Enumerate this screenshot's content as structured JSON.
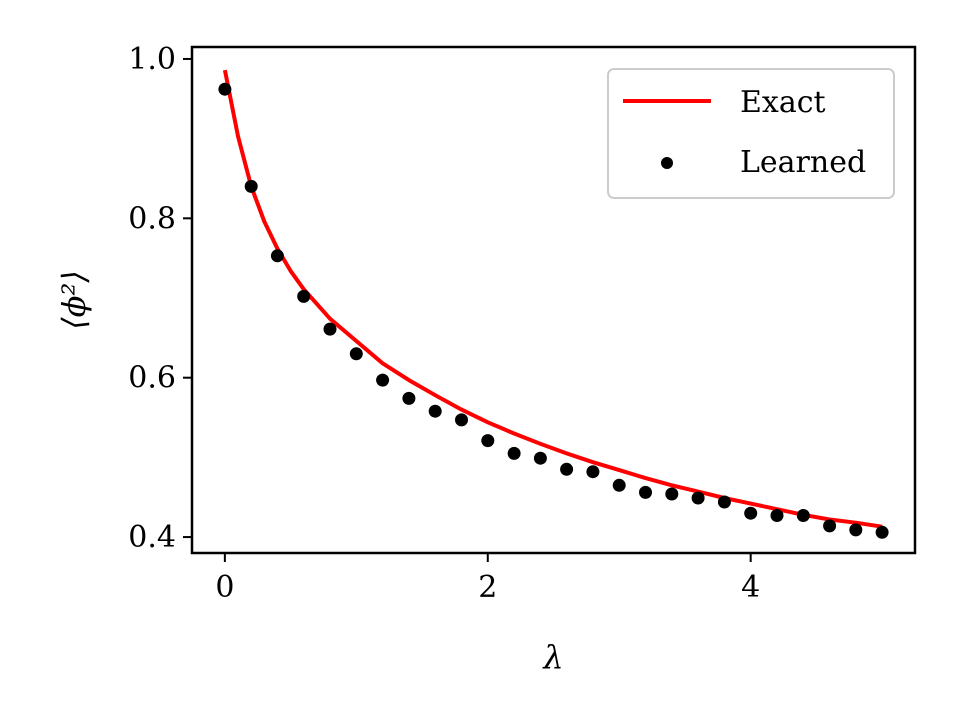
{
  "chart_data": {
    "type": "line",
    "title": "",
    "xlabel": "λ",
    "ylabel": "⟨ϕ²⟩",
    "xlim": [
      -0.25,
      5.25
    ],
    "ylim": [
      0.38,
      1.015
    ],
    "x_ticks": [
      0,
      2,
      4
    ],
    "x_tick_labels": [
      "0",
      "2",
      "4"
    ],
    "y_ticks": [
      0.4,
      0.6,
      0.8,
      1.0
    ],
    "y_tick_labels": [
      "0.4",
      "0.6",
      "0.8",
      "1.0"
    ],
    "grid": false,
    "legend_position": "top-right",
    "series": [
      {
        "name": "Exact",
        "kind": "line",
        "color": "#ff0000",
        "x": [
          0,
          0.1,
          0.2,
          0.3,
          0.4,
          0.5,
          0.6,
          0.8,
          1.0,
          1.2,
          1.4,
          1.6,
          1.8,
          2.0,
          2.2,
          2.4,
          2.6,
          2.8,
          3.0,
          3.2,
          3.4,
          3.6,
          3.8,
          4.0,
          4.2,
          4.4,
          4.6,
          4.8,
          5.0
        ],
        "y": [
          0.986,
          0.903,
          0.84,
          0.796,
          0.762,
          0.734,
          0.711,
          0.674,
          0.646,
          0.618,
          0.597,
          0.578,
          0.56,
          0.544,
          0.53,
          0.517,
          0.505,
          0.494,
          0.484,
          0.474,
          0.465,
          0.457,
          0.449,
          0.442,
          0.435,
          0.428,
          0.422,
          0.418,
          0.413
        ]
      },
      {
        "name": "Learned",
        "kind": "scatter",
        "color": "#000000",
        "x": [
          0,
          0.2,
          0.4,
          0.6,
          0.8,
          1.0,
          1.2,
          1.4,
          1.6,
          1.8,
          2.0,
          2.2,
          2.4,
          2.6,
          2.8,
          3.0,
          3.2,
          3.4,
          3.6,
          3.8,
          4.0,
          4.2,
          4.4,
          4.6,
          4.8,
          5.0
        ],
        "y": [
          0.962,
          0.84,
          0.753,
          0.702,
          0.661,
          0.63,
          0.597,
          0.574,
          0.558,
          0.547,
          0.521,
          0.505,
          0.499,
          0.485,
          0.482,
          0.465,
          0.456,
          0.454,
          0.449,
          0.444,
          0.43,
          0.427,
          0.427,
          0.414,
          0.409,
          0.406
        ]
      }
    ]
  }
}
